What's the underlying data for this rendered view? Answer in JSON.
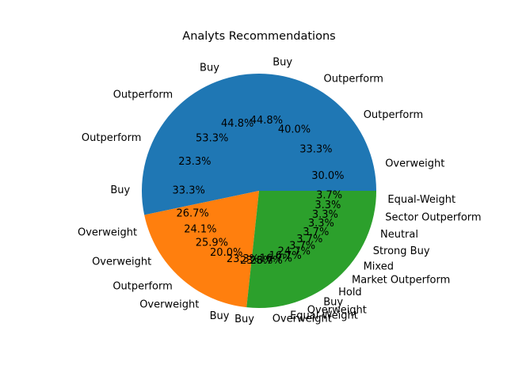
{
  "chart_data": {
    "type": "pie",
    "title": "Analyts Recommendations",
    "start_angle": 0,
    "direction": "counterclockwise",
    "legend": "none",
    "wedge_colors": [
      "#1f77b4",
      "#ff7f0e",
      "#2ca02c"
    ],
    "wedges": [
      {
        "percent": 53.3,
        "slices": [
          {
            "label": "Overweight",
            "percent": 30.0
          },
          {
            "label": "Outperform",
            "percent": 33.3
          },
          {
            "label": "Outperform",
            "percent": 40.0
          },
          {
            "label": "Buy",
            "percent": 44.8
          },
          {
            "label": "Buy",
            "percent": 44.8
          },
          {
            "label": "Outperform",
            "percent": 53.3
          },
          {
            "label": "Outperform",
            "percent": 23.3
          },
          {
            "label": "Buy",
            "percent": 33.3
          }
        ]
      },
      {
        "percent": 20.0,
        "slices": [
          {
            "label": "Overweight",
            "percent": 26.7
          },
          {
            "label": "Overweight",
            "percent": 24.1
          },
          {
            "label": "Outperform",
            "percent": 25.9
          },
          {
            "label": "Overweight",
            "percent": 20.0
          },
          {
            "label": "Buy",
            "percent": 23.3
          }
        ]
      },
      {
        "percent": 26.7,
        "slices": [
          {
            "label": "Buy",
            "percent": 23.3
          },
          {
            "label": "Overweight",
            "percent": 26.7
          },
          {
            "label": "Equal-Weight",
            "percent": 16.7
          },
          {
            "label": "Overweight",
            "percent": 16.7
          },
          {
            "label": "Buy",
            "percent": 24.7
          },
          {
            "label": "Hold",
            "percent": 3.7
          },
          {
            "label": "Market Outperform",
            "percent": 3.7
          },
          {
            "label": "Mixed",
            "percent": 3.7
          },
          {
            "label": "Strong Buy",
            "percent": 3.3
          },
          {
            "label": "Neutral",
            "percent": 3.3
          },
          {
            "label": "Sector Outperform",
            "percent": 3.3
          },
          {
            "label": "Equal-Weight",
            "percent": 3.7
          }
        ]
      }
    ]
  }
}
